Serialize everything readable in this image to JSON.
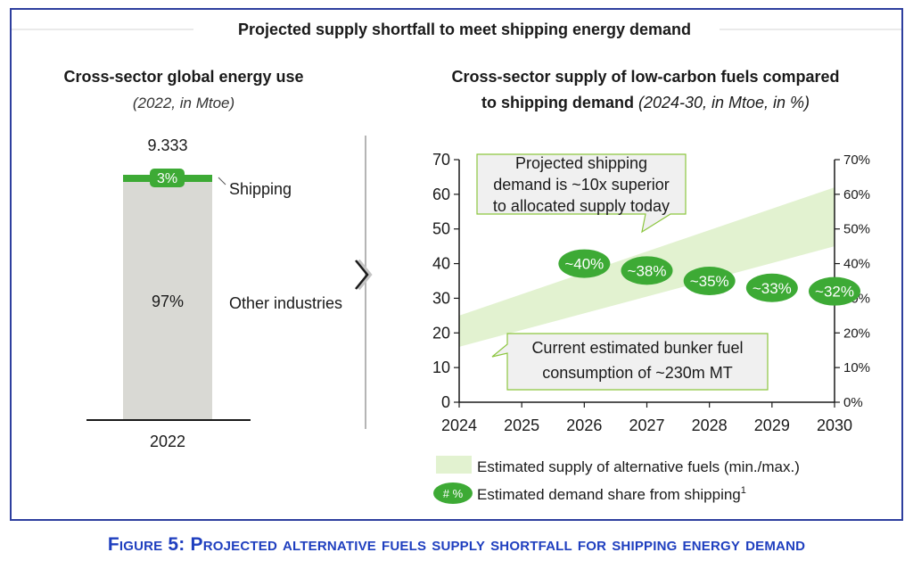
{
  "figure": {
    "title": "Projected supply shortfall to meet shipping energy demand",
    "caption": "Figure 5: Projected alternative fuels supply shortfall for shipping energy demand"
  },
  "colors": {
    "accent_green": "#3daa35",
    "supply_band": "#e2f2d0",
    "bar_gray": "#d9d9d4",
    "caption_blue": "#1f3fbf",
    "frame_blue": "#2e3f9e"
  },
  "icons": [
    "chevron-right-icon"
  ],
  "chart_data": [
    {
      "type": "bar",
      "title": "Cross-sector global energy use",
      "subtitle": "(2022, in Mtoe)",
      "categories": [
        "2022"
      ],
      "total_label": "9.333",
      "series": [
        {
          "name": "Other industries",
          "values": [
            97
          ],
          "label": "97%"
        },
        {
          "name": "Shipping",
          "values": [
            3
          ],
          "label": "3%"
        }
      ]
    },
    {
      "type": "area",
      "title": "Cross-sector supply of low-carbon fuels compared to shipping demand",
      "subtitle": "(2024-30, in Mtoe, in %)",
      "x": [
        2024,
        2025,
        2026,
        2027,
        2028,
        2029,
        2030
      ],
      "x_tick_labels": [
        "2024",
        "2025",
        "2026",
        "2027",
        "2028",
        "2029",
        "2030"
      ],
      "ylim": [
        0,
        70
      ],
      "y_ticks": [
        0,
        10,
        20,
        30,
        40,
        50,
        60,
        70
      ],
      "y2lim": [
        0,
        70
      ],
      "y2_ticks": [
        "0%",
        "10%",
        "20%",
        "30%",
        "40%",
        "50%",
        "60%",
        "70%"
      ],
      "series": [
        {
          "name": "Estimated supply of alternative fuels (min./max.)",
          "type": "band",
          "x": [
            2024,
            2030
          ],
          "min": [
            16,
            45
          ],
          "max": [
            25,
            62
          ]
        },
        {
          "name": "Estimated demand share from shipping",
          "type": "markers",
          "x": [
            2026,
            2027,
            2028,
            2029,
            2030
          ],
          "values": [
            40,
            38,
            35,
            33,
            32
          ],
          "labels": [
            "~40%",
            "~38%",
            "~35%",
            "~33%",
            "~32%"
          ]
        }
      ],
      "annotations": [
        {
          "lines": [
            "Projected shipping",
            "demand is ~10x superior",
            "to allocated supply today"
          ]
        },
        {
          "lines": [
            "Current estimated bunker fuel",
            "consumption of ~230m MT"
          ]
        }
      ],
      "legend": [
        {
          "label": "Estimated supply of alternative fuels (min./max.)"
        },
        {
          "label": "Estimated demand share from shipping",
          "marker_text": "# %",
          "superscript": "1"
        }
      ]
    }
  ]
}
